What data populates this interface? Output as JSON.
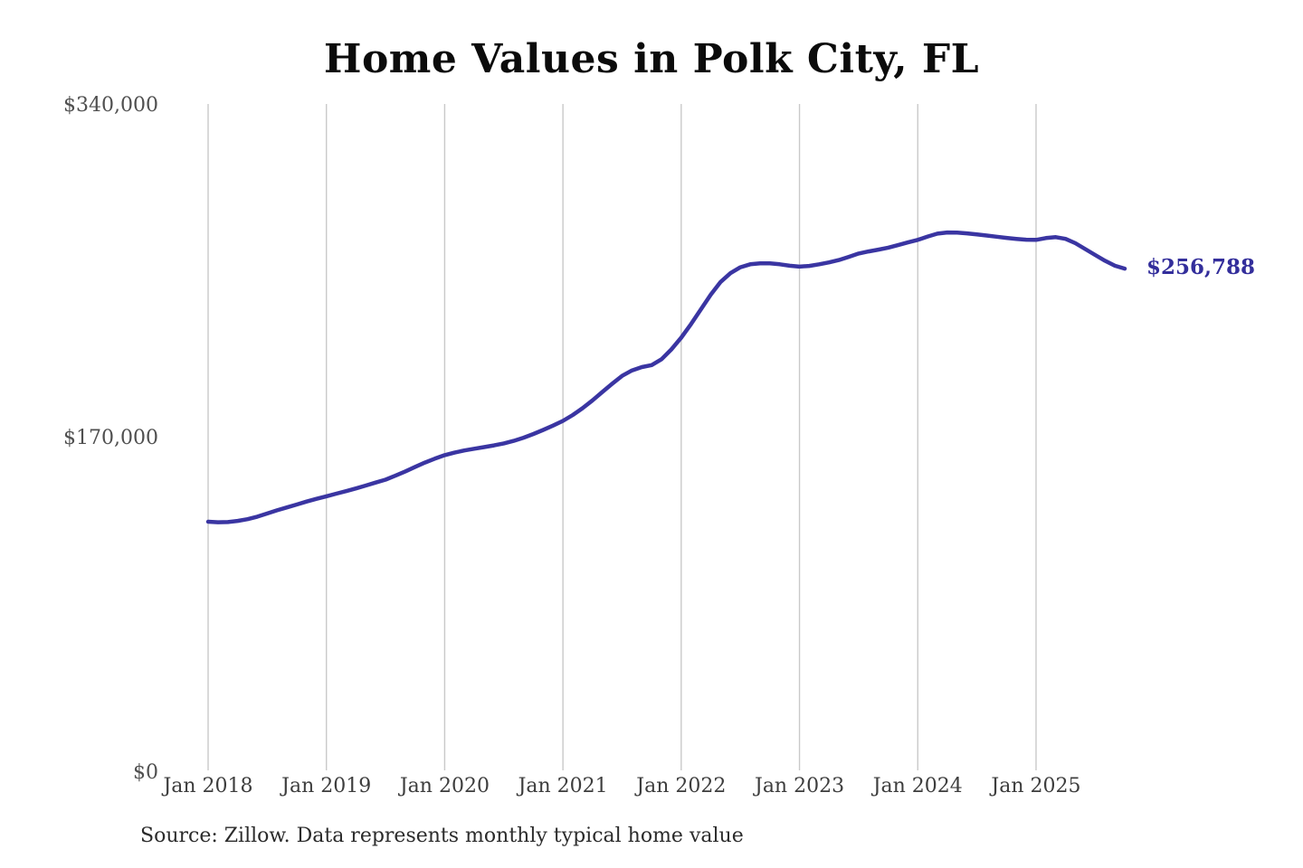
{
  "page": {
    "title": "Home Values in Polk City, FL",
    "end_value_label": "$256,788",
    "source_note": "Source: Zillow. Data represents monthly typical home value"
  },
  "colors": {
    "line": "#3a35a2",
    "end_label_text": "#332e9b",
    "gridline": "#c9c9c9",
    "y_tick_text": "#4f4f4f",
    "x_tick_text": "#3d3d3d",
    "title_text": "#0b0b0b",
    "source_text": "#2b2b2b",
    "background": "#ffffff"
  },
  "chart_data": {
    "type": "line",
    "title": "Home Values in Polk City, FL",
    "xlabel": "",
    "ylabel": "",
    "ylim": [
      0,
      340000
    ],
    "grid": "vertical-only",
    "legend": "none",
    "y_tick_labels": [
      "$340,000",
      "$170,000",
      "$0"
    ],
    "y_tick_values": [
      340000,
      170000,
      0
    ],
    "x_tick_labels": [
      "Jan 2018",
      "Jan 2019",
      "Jan 2020",
      "Jan 2021",
      "Jan 2022",
      "Jan 2023",
      "Jan 2024",
      "Jan 2025"
    ],
    "series": [
      {
        "name": "Monthly typical home value",
        "start_month": "2018-01",
        "end_month": "2025-10",
        "x": [
          "2018-01",
          "2018-02",
          "2018-03",
          "2018-04",
          "2018-05",
          "2018-06",
          "2018-07",
          "2018-08",
          "2018-09",
          "2018-10",
          "2018-11",
          "2018-12",
          "2019-01",
          "2019-02",
          "2019-03",
          "2019-04",
          "2019-05",
          "2019-06",
          "2019-07",
          "2019-08",
          "2019-09",
          "2019-10",
          "2019-11",
          "2019-12",
          "2020-01",
          "2020-02",
          "2020-03",
          "2020-04",
          "2020-05",
          "2020-06",
          "2020-07",
          "2020-08",
          "2020-09",
          "2020-10",
          "2020-11",
          "2020-12",
          "2021-01",
          "2021-02",
          "2021-03",
          "2021-04",
          "2021-05",
          "2021-06",
          "2021-07",
          "2021-08",
          "2021-09",
          "2021-10",
          "2021-11",
          "2021-12",
          "2022-01",
          "2022-02",
          "2022-03",
          "2022-04",
          "2022-05",
          "2022-06",
          "2022-07",
          "2022-08",
          "2022-09",
          "2022-10",
          "2022-11",
          "2022-12",
          "2023-01",
          "2023-02",
          "2023-03",
          "2023-04",
          "2023-05",
          "2023-06",
          "2023-07",
          "2023-08",
          "2023-09",
          "2023-10",
          "2023-11",
          "2023-12",
          "2024-01",
          "2024-02",
          "2024-03",
          "2024-04",
          "2024-05",
          "2024-06",
          "2024-07",
          "2024-08",
          "2024-09",
          "2024-10",
          "2024-11",
          "2024-12",
          "2025-01",
          "2025-02",
          "2025-03",
          "2025-04",
          "2025-05",
          "2025-06",
          "2025-07",
          "2025-08",
          "2025-09",
          "2025-10"
        ],
        "values": [
          127500,
          127200,
          127300,
          127900,
          128800,
          130100,
          131700,
          133300,
          134800,
          136300,
          137800,
          139200,
          140500,
          141800,
          143100,
          144500,
          146000,
          147500,
          149000,
          151000,
          153200,
          155500,
          157700,
          159700,
          161500,
          162800,
          163900,
          164800,
          165600,
          166500,
          167500,
          168800,
          170400,
          172300,
          174400,
          176600,
          179000,
          182000,
          185500,
          189500,
          193800,
          198000,
          202000,
          204800,
          206500,
          207500,
          210500,
          215500,
          221500,
          228500,
          236000,
          243500,
          250000,
          254500,
          257500,
          259000,
          259500,
          259500,
          259000,
          258300,
          257800,
          258200,
          259000,
          260000,
          261200,
          262800,
          264500,
          265600,
          266500,
          267500,
          268800,
          270200,
          271500,
          273200,
          274700,
          275300,
          275200,
          274800,
          274300,
          273700,
          273100,
          272500,
          272000,
          271600,
          271500,
          272400,
          272900,
          272000,
          269800,
          266800,
          263800,
          260800,
          258300,
          256788
        ]
      }
    ],
    "last_point": {
      "x": "2025-10",
      "value": 256788,
      "label": "$256,788"
    }
  }
}
